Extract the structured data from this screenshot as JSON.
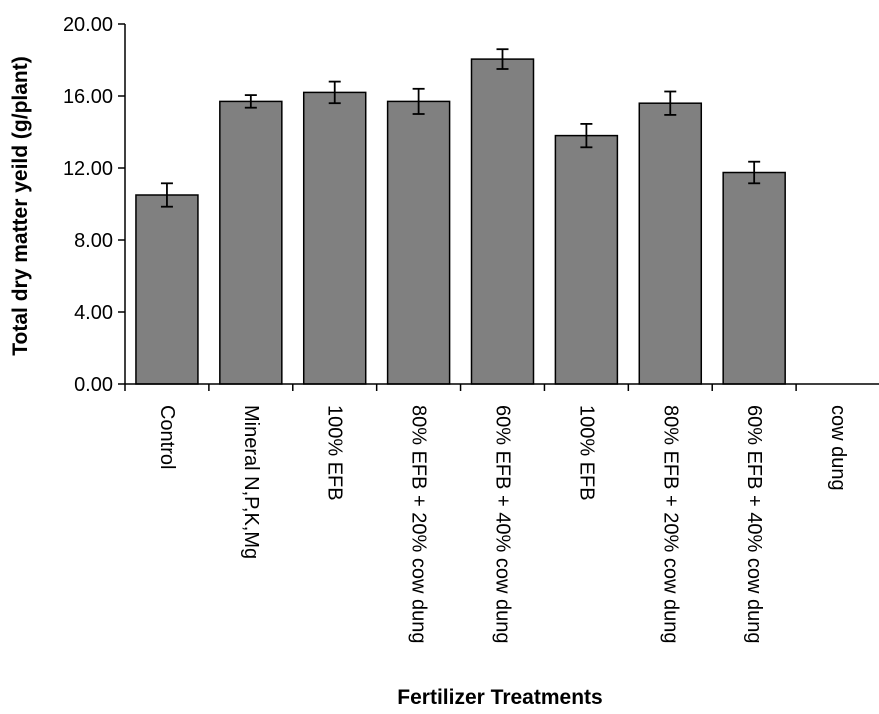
{
  "chart_data": {
    "type": "bar",
    "categories": [
      "Control",
      "Mineral N,P,K,Mg",
      "100% EFB",
      "80% EFB + 20% cow dung",
      "60% EFB + 40% cow dung",
      "100% EFB",
      "80% EFB + 20% cow dung",
      "60% EFB + 40% cow dung",
      "cow dung"
    ],
    "values": [
      10.5,
      15.7,
      16.2,
      15.7,
      18.05,
      13.8,
      15.6,
      11.75,
      null
    ],
    "errors": [
      0.65,
      0.35,
      0.6,
      0.7,
      0.55,
      0.65,
      0.65,
      0.6,
      null
    ],
    "xlabel": "Fertilizer Treatments",
    "ylabel": "Total dry matter yeild (g/plant)",
    "ylim": [
      0,
      20
    ],
    "yticks": [
      "0.00",
      "4.00",
      "8.00",
      "12.00",
      "16.00",
      "20.00"
    ],
    "grid": false,
    "legend": "none",
    "colors": {
      "bar_fill": "#808080",
      "bar_stroke": "#000000",
      "axis": "#000000",
      "background": "#ffffff"
    }
  }
}
